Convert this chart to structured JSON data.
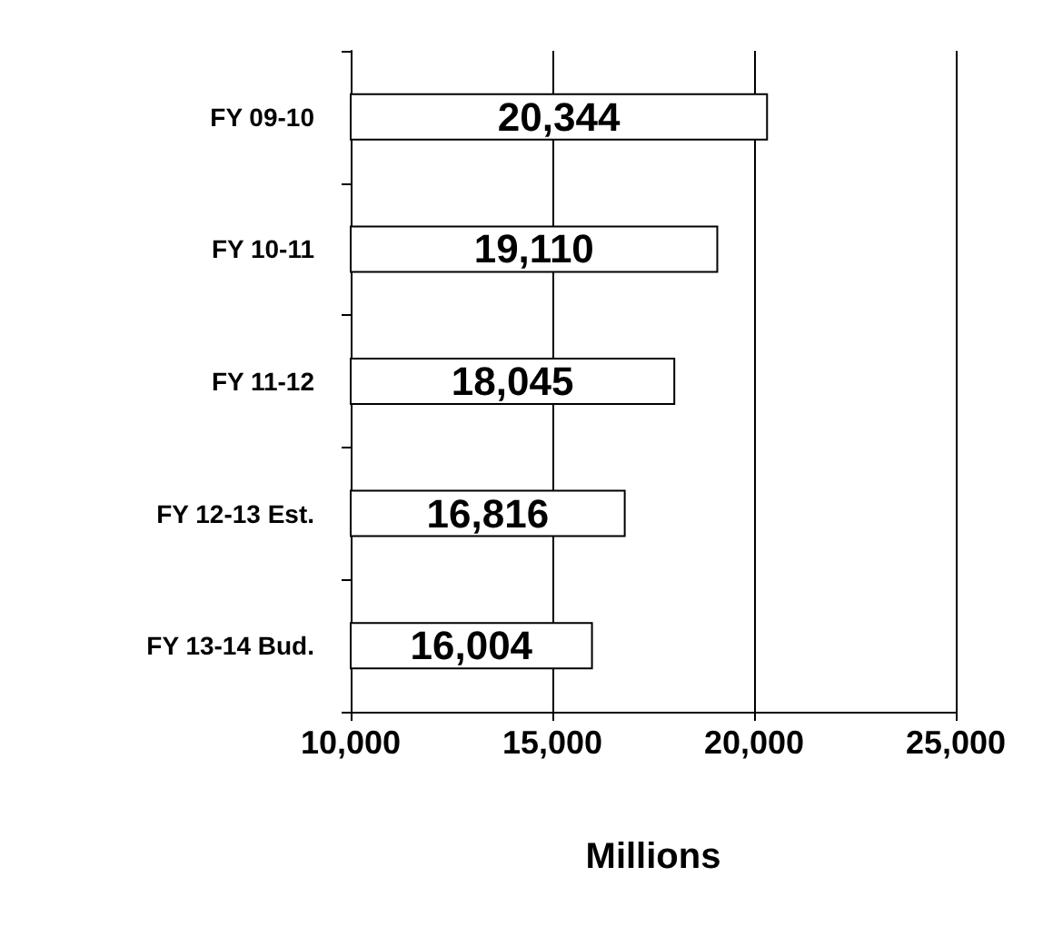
{
  "chart_data": {
    "type": "bar",
    "orientation": "horizontal",
    "xlabel": "Millions",
    "categories": [
      "FY 09-10",
      "FY 10-11",
      "FY 11-12",
      "FY 12-13 Est.",
      "FY 13-14 Bud."
    ],
    "values": [
      20344,
      19110,
      18045,
      16816,
      16004
    ],
    "value_labels": [
      "20,344",
      "19,110",
      "18,045",
      "16,816",
      "16,004"
    ],
    "color": "#ffffff",
    "xlim": [
      10000,
      25000
    ],
    "xticks": [
      {
        "value": 10000,
        "label": "10,000"
      },
      {
        "value": 15000,
        "label": "15,000"
      },
      {
        "value": 20000,
        "label": "20,000"
      },
      {
        "value": 25000,
        "label": "25,000"
      }
    ],
    "grid": "x"
  }
}
